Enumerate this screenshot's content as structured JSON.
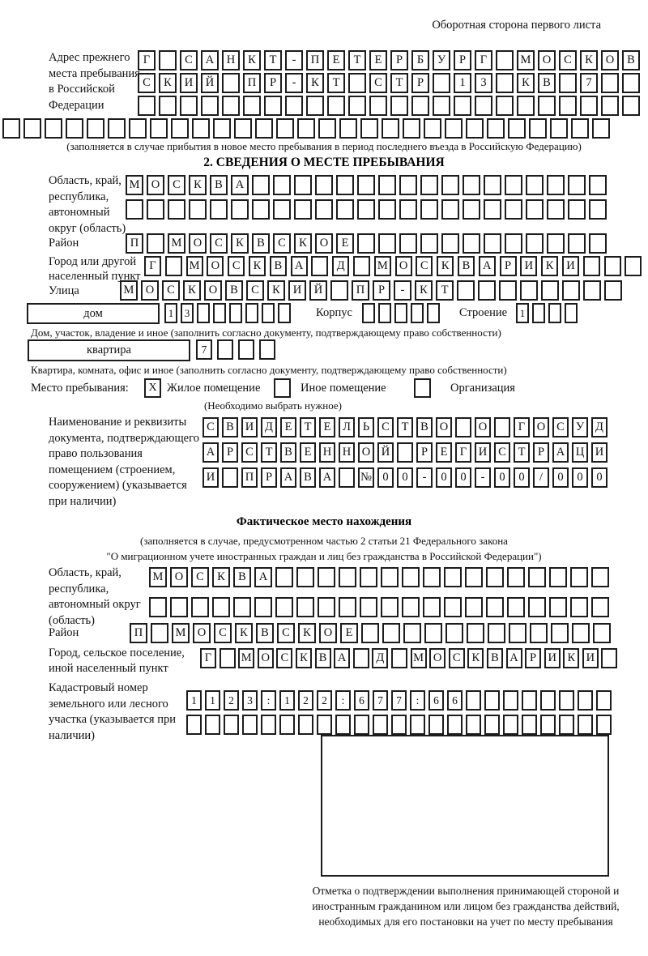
{
  "header": {
    "note": "Оборотная сторона первого листа"
  },
  "address_prev": {
    "label": "Адрес прежнего места пребывания в Российской Федерации",
    "rows": [
      {
        "len": 24,
        "text": "Г САНКТ-ПЕТЕРБУРГ МОСКОВ"
      },
      {
        "len": 24,
        "text": "СКИЙ ПР-КТ СТР 13 КВ 7"
      },
      {
        "len": 24,
        "text": ""
      },
      {
        "len": 29,
        "text": ""
      }
    ],
    "caption": "(заполняется в случае прибытия в новое место пребывания в период последнего въезда в Российскую Федерацию)"
  },
  "section2": {
    "title": "2. СВЕДЕНИЯ О МЕСТЕ ПРЕБЫВАНИЯ",
    "oblast": {
      "label": "Область, край, республика, автономный округ (область)",
      "rows": [
        {
          "len": 23,
          "text": "МОСКВА"
        },
        {
          "len": 23,
          "text": ""
        }
      ]
    },
    "rayon": {
      "label": "Район",
      "row": {
        "len": 23,
        "text": "П МОСКВСКОЕ"
      }
    },
    "gorod": {
      "label": "Город или другой населенный пункт",
      "row": {
        "len": 24,
        "text": "Г МОСКВА Д МОСКВАРИКИ"
      }
    },
    "ulitsa": {
      "label": "Улица",
      "row": {
        "len": 24,
        "text": "МОСКОВСКИЙ ПР-КТ"
      }
    },
    "dom": {
      "box_label": "дом",
      "row": {
        "len": 8,
        "text": "13"
      },
      "korpus_label": "Корпус",
      "korpus_row": {
        "len": 5,
        "text": ""
      },
      "stroenie_label": "Строение",
      "stroenie_row": {
        "len": 4,
        "text": "1"
      },
      "caption": "Дом, участок, владение и иное (заполнить согласно документу, подтверждающему право собственности)"
    },
    "kvartira": {
      "box_label": "квартира",
      "row": {
        "len": 4,
        "text": "7"
      },
      "caption": "Квартира, комната, офис и иное (заполнить согласно документу, подтверждающему право собственности)"
    },
    "mesto": {
      "label": "Место пребывания:",
      "options": [
        {
          "label": "Жилое помещение",
          "checked": "X"
        },
        {
          "label": "Иное помещение",
          "checked": ""
        },
        {
          "label": "Организация",
          "checked": ""
        }
      ],
      "caption": "(Необходимо выбрать нужное)"
    },
    "document": {
      "label": "Наименование и реквизиты документа, подтверждающего право пользования помещением (строением, сооружением) (указывается при наличии)",
      "rows": [
        {
          "len": 21,
          "text": "СВИДЕТЕЛЬСТВО О ГОСУД"
        },
        {
          "len": 21,
          "text": "АРСТВЕННОЙ РЕГИСТРАЦИ"
        },
        {
          "len": 21,
          "text": "И ПРАВА №00-00-00/000"
        }
      ]
    }
  },
  "fact": {
    "title": "Фактическое место нахождения",
    "caption1": "(заполняется в случае, предусмотренном частью 2 статьи 21 Федерального закона",
    "caption2": "\"О миграционном учете иностранных граждан и лиц без гражданства в Российской Федерации\")",
    "oblast": {
      "label": "Область, край, республика, автономный округ (область)",
      "rows": [
        {
          "len": 22,
          "text": "МОСКВА"
        },
        {
          "len": 22,
          "text": ""
        }
      ]
    },
    "rayon": {
      "label": "Район",
      "row": {
        "len": 23,
        "text": "П МОСКВСКОЕ"
      }
    },
    "gorod": {
      "label": "Город, сельское поселение, иной населенный пункт",
      "row": {
        "len": 22,
        "text": "Г МОСКВА Д МОСКВАРИКИ"
      }
    },
    "kadastr": {
      "label": "Кадастровый номер земельного или лесного участка (указывается при наличии)",
      "rows": [
        {
          "len": 23,
          "text": "1123:122:677:66"
        },
        {
          "len": 23,
          "text": ""
        }
      ]
    },
    "stamp_caption": "Отметка о подтверждении выполнения принимающей стороной и иностранным гражданином или лицом без гражданства действий, необходимых для его постановки на учет по месту пребывания"
  }
}
